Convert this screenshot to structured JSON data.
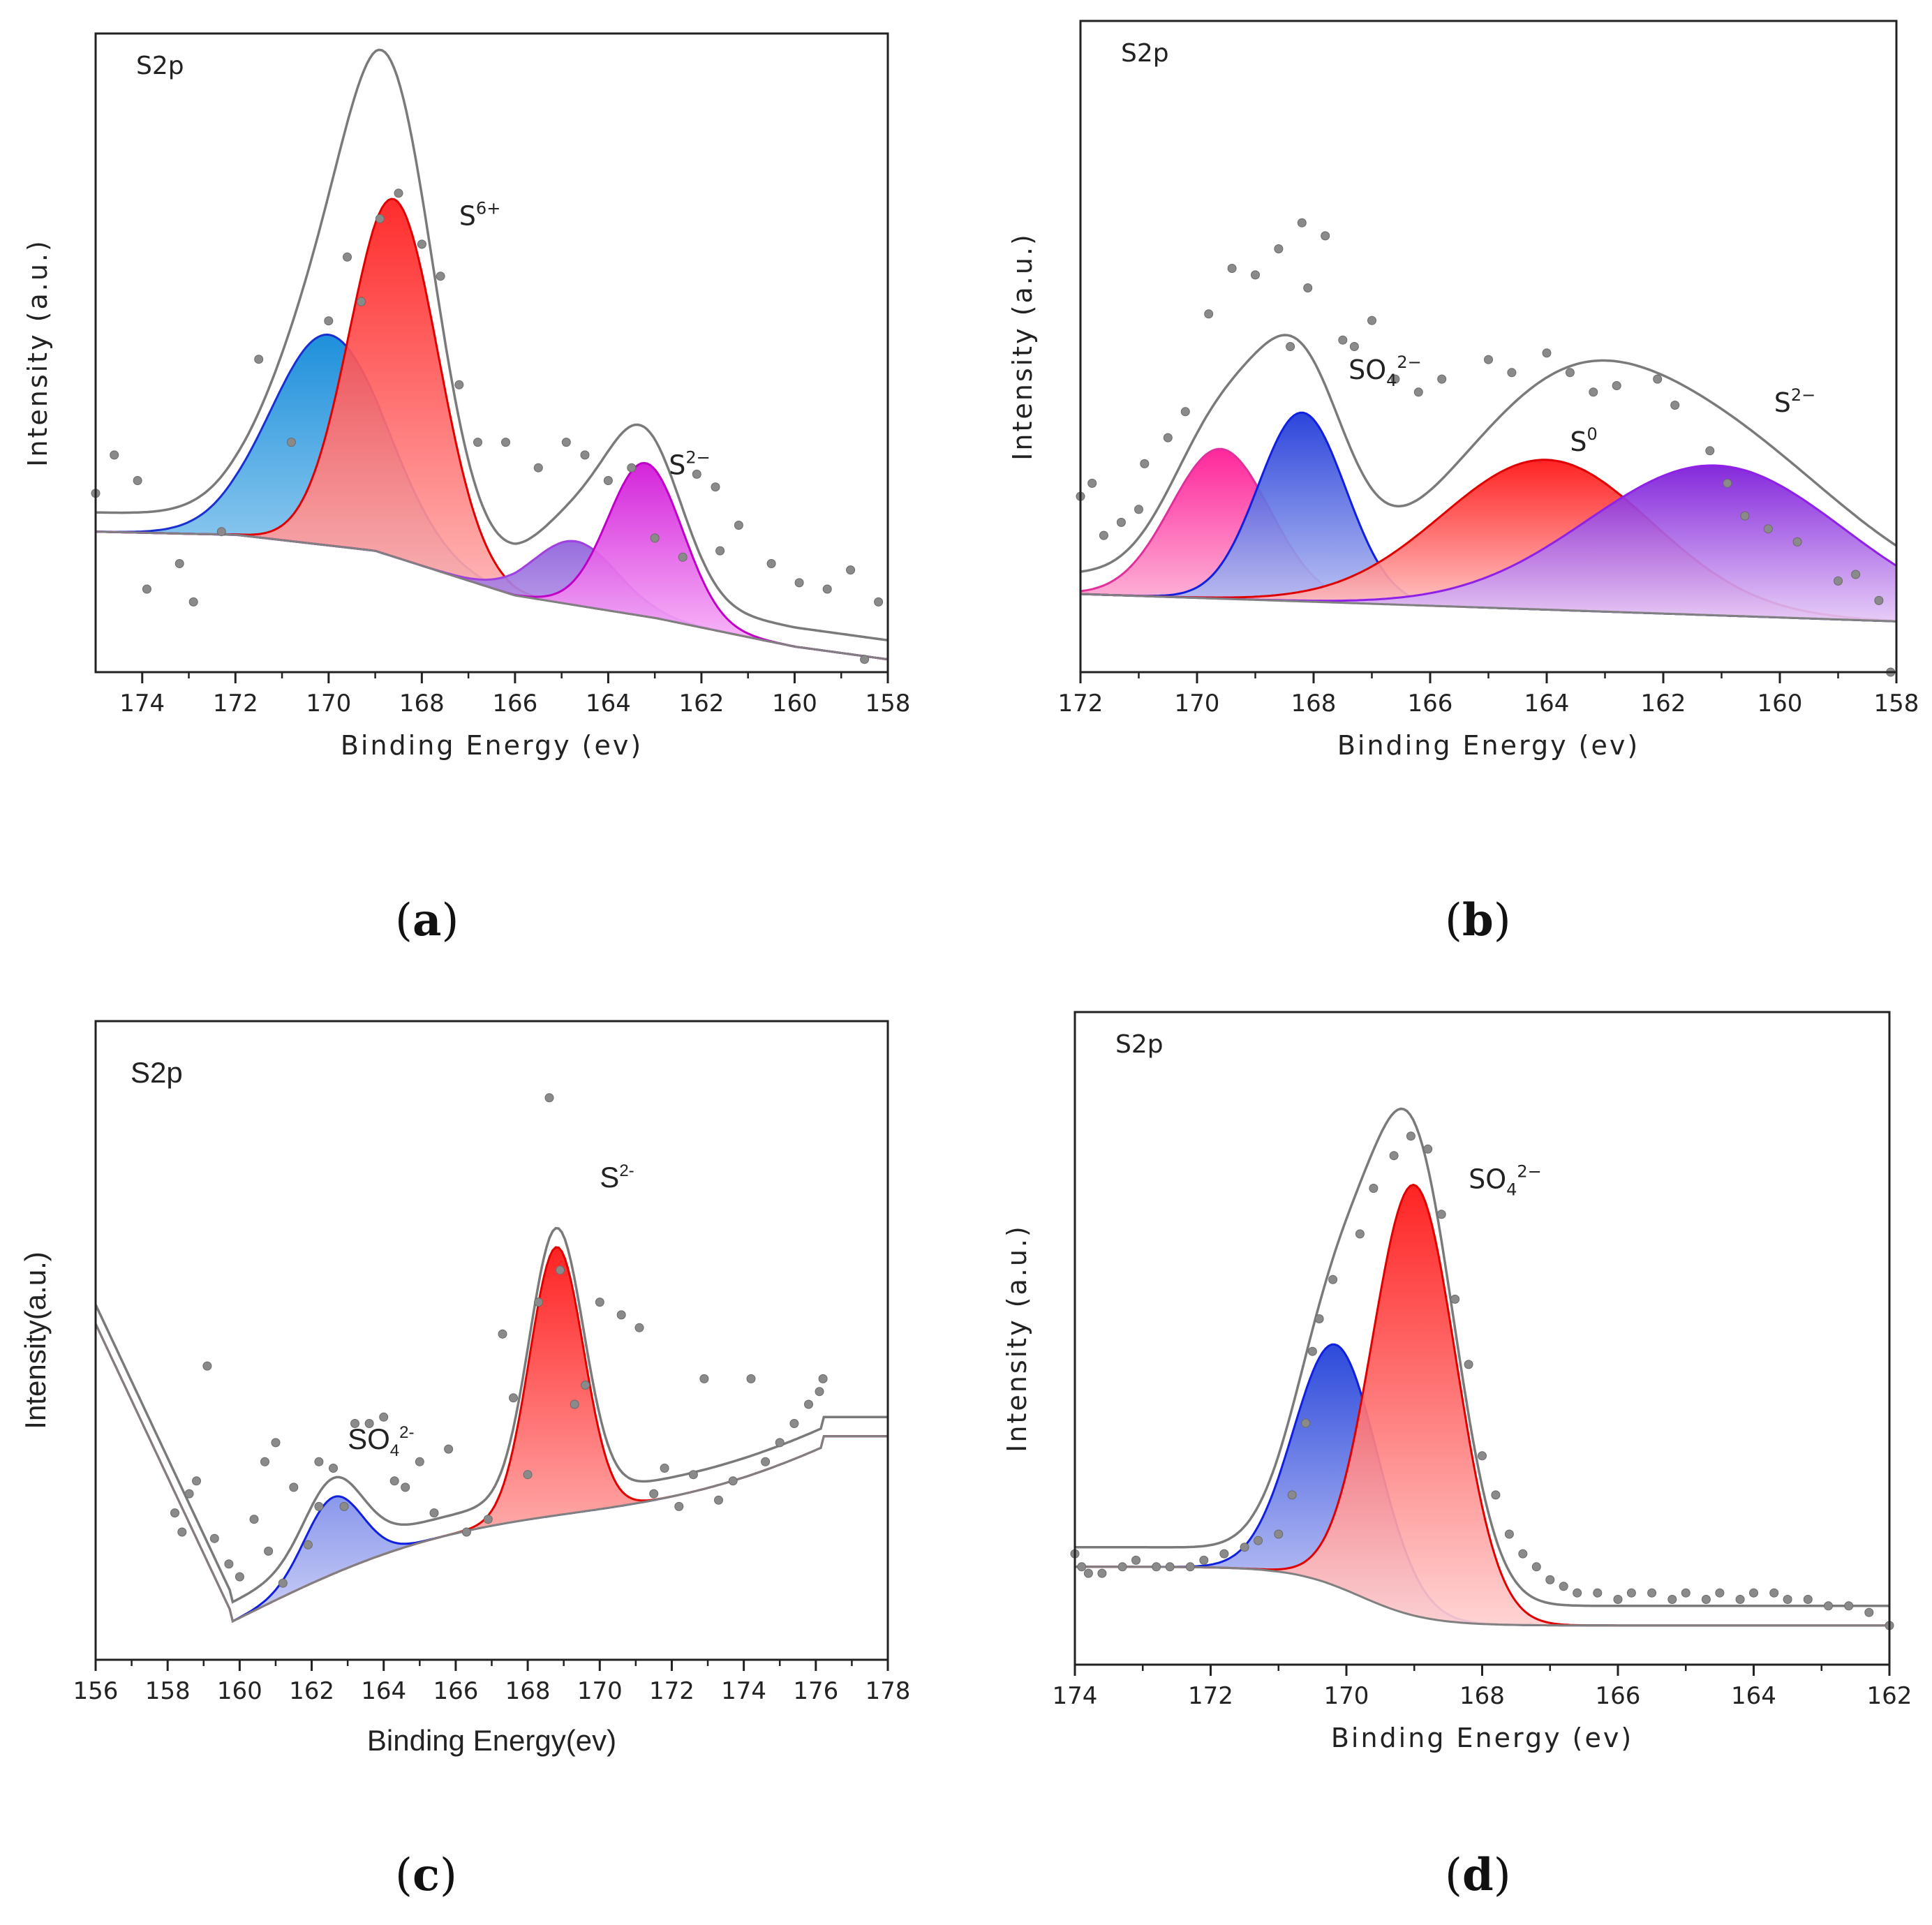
{
  "figure": {
    "panel_labels": [
      "(a)",
      "(b)",
      "(c)",
      "(d)"
    ]
  },
  "chart_data": [
    {
      "id": "a",
      "type": "area",
      "title": "S2p",
      "xlabel": "Binding Energy (ev)",
      "ylabel": "Intensity (a.u.)",
      "xlim": [
        175,
        158
      ],
      "ylim": [
        0,
        1
      ],
      "xticks": [
        174,
        172,
        170,
        168,
        166,
        164,
        162,
        160,
        158
      ],
      "grid": false,
      "annotations": [
        {
          "base": "S",
          "sup": "6+",
          "x": 167.2,
          "y": 0.7
        },
        {
          "base": "S",
          "sup": "2−",
          "x": 162.7,
          "y": 0.31
        }
      ],
      "background_slope": [
        [
          175,
          0.22
        ],
        [
          172,
          0.215
        ],
        [
          169,
          0.19
        ],
        [
          166,
          0.12
        ],
        [
          163,
          0.085
        ],
        [
          160,
          0.04
        ],
        [
          158,
          0.02
        ]
      ],
      "peaks": [
        {
          "center": 170.0,
          "height": 0.33,
          "width": 1.25,
          "color_top": "#0a86d8",
          "color_bottom": "#bfe3f7",
          "stroke": "#1a2fd0"
        },
        {
          "center": 168.6,
          "height": 0.56,
          "width": 0.95,
          "color_top": "#ff1a1a",
          "color_bottom": "#ffc8c8",
          "stroke": "#e10000"
        },
        {
          "center": 164.7,
          "height": 0.1,
          "width": 0.9,
          "color_top": "#8a5ad8",
          "color_bottom": "#cdb6f2",
          "stroke": "#a040e0"
        },
        {
          "center": 163.2,
          "height": 0.24,
          "width": 0.8,
          "color_top": "#d012d8",
          "color_bottom": "#fbc0fb",
          "stroke": "#c000c8"
        }
      ],
      "points": [
        [
          175.0,
          0.28
        ],
        [
          174.6,
          0.34
        ],
        [
          174.1,
          0.3
        ],
        [
          173.9,
          0.13
        ],
        [
          173.2,
          0.17
        ],
        [
          172.9,
          0.11
        ],
        [
          172.3,
          0.22
        ],
        [
          171.5,
          0.49
        ],
        [
          170.8,
          0.36
        ],
        [
          170.0,
          0.55
        ],
        [
          169.6,
          0.65
        ],
        [
          169.3,
          0.58
        ],
        [
          168.9,
          0.71
        ],
        [
          168.5,
          0.75
        ],
        [
          168.0,
          0.67
        ],
        [
          167.6,
          0.62
        ],
        [
          167.2,
          0.45
        ],
        [
          166.8,
          0.36
        ],
        [
          166.2,
          0.36
        ],
        [
          165.5,
          0.32
        ],
        [
          164.9,
          0.36
        ],
        [
          164.5,
          0.34
        ],
        [
          164.0,
          0.3
        ],
        [
          163.5,
          0.32
        ],
        [
          163.0,
          0.21
        ],
        [
          162.4,
          0.18
        ],
        [
          162.1,
          0.31
        ],
        [
          161.7,
          0.29
        ],
        [
          161.2,
          0.23
        ],
        [
          160.5,
          0.17
        ],
        [
          159.9,
          0.14
        ],
        [
          159.3,
          0.13
        ],
        [
          158.8,
          0.16
        ],
        [
          158.2,
          0.11
        ],
        [
          161.6,
          0.19
        ],
        [
          158.5,
          0.02
        ]
      ]
    },
    {
      "id": "b",
      "type": "area",
      "title": "S2p",
      "xlabel": "Binding Energy (ev)",
      "ylabel": "Intensity (a.u.)",
      "xlim": [
        172,
        158
      ],
      "ylim": [
        0,
        1
      ],
      "xticks": [
        172,
        170,
        168,
        166,
        164,
        162,
        160,
        158
      ],
      "grid": false,
      "annotations": [
        {
          "base": "SO",
          "sub": "4",
          "sup": "2−",
          "x": 167.4,
          "y": 0.45
        },
        {
          "base": "S",
          "sup": "0",
          "x": 163.6,
          "y": 0.34
        },
        {
          "base": "S",
          "sup": "2−",
          "x": 160.1,
          "y": 0.4
        }
      ],
      "peaks": [
        {
          "center": 169.6,
          "height": 0.23,
          "width": 0.85,
          "color_top": "#ff1493",
          "color_bottom": "#fcc0dc",
          "stroke": "#e0309a"
        },
        {
          "center": 168.2,
          "height": 0.29,
          "width": 0.75,
          "color_top": "#1a35d8",
          "color_bottom": "#c4caf4",
          "stroke": "#1020e0"
        },
        {
          "center": 164.0,
          "height": 0.23,
          "width": 1.8,
          "color_top": "#ff1010",
          "color_bottom": "#ffd0d0",
          "stroke": "#e00000"
        },
        {
          "center": 161.1,
          "height": 0.23,
          "width": 2.2,
          "color_top": "#7a16d8",
          "color_bottom": "#e4c8f7",
          "stroke": "#9020e8"
        }
      ],
      "points": [
        [
          172.0,
          0.27
        ],
        [
          171.8,
          0.29
        ],
        [
          171.6,
          0.21
        ],
        [
          171.3,
          0.23
        ],
        [
          171.0,
          0.25
        ],
        [
          170.9,
          0.32
        ],
        [
          170.5,
          0.36
        ],
        [
          170.2,
          0.4
        ],
        [
          169.8,
          0.55
        ],
        [
          169.4,
          0.62
        ],
        [
          169.0,
          0.61
        ],
        [
          168.6,
          0.65
        ],
        [
          168.2,
          0.69
        ],
        [
          167.8,
          0.67
        ],
        [
          167.5,
          0.51
        ],
        [
          167.0,
          0.54
        ],
        [
          166.6,
          0.45
        ],
        [
          166.2,
          0.43
        ],
        [
          165.8,
          0.45
        ],
        [
          165.0,
          0.48
        ],
        [
          164.6,
          0.46
        ],
        [
          164.0,
          0.49
        ],
        [
          163.6,
          0.46
        ],
        [
          163.2,
          0.43
        ],
        [
          162.8,
          0.44
        ],
        [
          162.1,
          0.45
        ],
        [
          161.8,
          0.41
        ],
        [
          161.2,
          0.34
        ],
        [
          160.9,
          0.29
        ],
        [
          160.6,
          0.24
        ],
        [
          160.2,
          0.22
        ],
        [
          159.7,
          0.2
        ],
        [
          159.0,
          0.14
        ],
        [
          158.7,
          0.15
        ],
        [
          158.3,
          0.11
        ],
        [
          158.1,
          0.0
        ],
        [
          168.4,
          0.5
        ],
        [
          167.3,
          0.5
        ],
        [
          168.1,
          0.59
        ]
      ]
    },
    {
      "id": "c",
      "type": "area",
      "title": "S2p",
      "xlabel": "Binding Energy(ev)",
      "ylabel": "Intensity(a.u.)",
      "xlim": [
        156,
        178
      ],
      "ylim": [
        0,
        1
      ],
      "xticks": [
        156,
        158,
        160,
        162,
        164,
        166,
        168,
        170,
        172,
        174,
        176,
        178
      ],
      "grid": false,
      "annotations": [
        {
          "base": "S",
          "sup": "2-",
          "x": 170.0,
          "y": 0.74
        },
        {
          "base": "SO",
          "sub": "4",
          "sup": "2-",
          "x": 163.0,
          "y": 0.33
        }
      ],
      "peaks": [
        {
          "center": 162.6,
          "height": 0.12,
          "width": 0.8,
          "color_top": "#1a3ad8",
          "color_bottom": "#c8ccf6",
          "stroke": "#1020e0"
        },
        {
          "center": 168.8,
          "height": 0.42,
          "width": 0.75,
          "color_top": "#ff1010",
          "color_bottom": "#ffd0d0",
          "stroke": "#e00000"
        }
      ],
      "points": [
        [
          158.2,
          0.23
        ],
        [
          158.4,
          0.2
        ],
        [
          158.6,
          0.26
        ],
        [
          158.8,
          0.28
        ],
        [
          159.1,
          0.46
        ],
        [
          159.3,
          0.19
        ],
        [
          159.7,
          0.15
        ],
        [
          160.0,
          0.13
        ],
        [
          160.4,
          0.22
        ],
        [
          160.7,
          0.31
        ],
        [
          160.8,
          0.17
        ],
        [
          161.2,
          0.12
        ],
        [
          161.5,
          0.27
        ],
        [
          161.9,
          0.18
        ],
        [
          162.2,
          0.24
        ],
        [
          162.6,
          0.3
        ],
        [
          162.9,
          0.24
        ],
        [
          163.2,
          0.37
        ],
        [
          163.6,
          0.37
        ],
        [
          164.0,
          0.38
        ],
        [
          164.3,
          0.28
        ],
        [
          164.6,
          0.27
        ],
        [
          165.0,
          0.31
        ],
        [
          165.4,
          0.23
        ],
        [
          165.8,
          0.33
        ],
        [
          166.3,
          0.2
        ],
        [
          166.9,
          0.22
        ],
        [
          167.3,
          0.51
        ],
        [
          167.6,
          0.41
        ],
        [
          168.0,
          0.29
        ],
        [
          168.3,
          0.56
        ],
        [
          168.6,
          0.88
        ],
        [
          168.9,
          0.61
        ],
        [
          169.3,
          0.4
        ],
        [
          169.6,
          0.43
        ],
        [
          170.0,
          0.56
        ],
        [
          170.6,
          0.54
        ],
        [
          171.1,
          0.52
        ],
        [
          171.5,
          0.26
        ],
        [
          171.8,
          0.3
        ],
        [
          172.2,
          0.24
        ],
        [
          172.6,
          0.29
        ],
        [
          172.9,
          0.44
        ],
        [
          173.3,
          0.25
        ],
        [
          173.7,
          0.28
        ],
        [
          174.2,
          0.44
        ],
        [
          174.6,
          0.31
        ],
        [
          175.0,
          0.34
        ],
        [
          175.4,
          0.37
        ],
        [
          175.8,
          0.4
        ],
        [
          176.1,
          0.42
        ],
        [
          176.2,
          0.44
        ],
        [
          161.0,
          0.34
        ],
        [
          162.2,
          0.31
        ]
      ]
    },
    {
      "id": "d",
      "type": "area",
      "title": "S2p",
      "xlabel": "Binding Energy (ev)",
      "ylabel": "Intensity (a.u.)",
      "xlim": [
        174,
        162
      ],
      "ylim": [
        0,
        1
      ],
      "xticks": [
        174,
        172,
        170,
        168,
        166,
        164,
        162
      ],
      "grid": false,
      "annotations": [
        {
          "base": "SO",
          "sub": "4",
          "sup": "2−",
          "x": 168.2,
          "y": 0.73
        }
      ],
      "peaks": [
        {
          "center": 170.15,
          "height": 0.37,
          "width": 0.62,
          "color_top": "#1a3ad8",
          "color_bottom": "#c8ccf6",
          "stroke": "#1020e0"
        },
        {
          "center": 169.0,
          "height": 0.66,
          "width": 0.62,
          "color_top": "#ff1010",
          "color_bottom": "#ffd0d0",
          "stroke": "#e00000"
        }
      ],
      "points": [
        [
          174.0,
          0.17
        ],
        [
          173.9,
          0.15
        ],
        [
          173.8,
          0.14
        ],
        [
          173.6,
          0.14
        ],
        [
          173.3,
          0.15
        ],
        [
          173.1,
          0.16
        ],
        [
          172.8,
          0.15
        ],
        [
          172.6,
          0.15
        ],
        [
          172.3,
          0.15
        ],
        [
          172.1,
          0.16
        ],
        [
          171.8,
          0.17
        ],
        [
          171.5,
          0.18
        ],
        [
          171.3,
          0.19
        ],
        [
          171.0,
          0.2
        ],
        [
          170.8,
          0.26
        ],
        [
          170.6,
          0.37
        ],
        [
          170.5,
          0.48
        ],
        [
          170.4,
          0.53
        ],
        [
          170.2,
          0.59
        ],
        [
          169.8,
          0.66
        ],
        [
          169.6,
          0.73
        ],
        [
          169.3,
          0.78
        ],
        [
          169.05,
          0.81
        ],
        [
          168.8,
          0.79
        ],
        [
          168.6,
          0.69
        ],
        [
          168.4,
          0.56
        ],
        [
          168.2,
          0.46
        ],
        [
          168.0,
          0.32
        ],
        [
          167.8,
          0.26
        ],
        [
          167.6,
          0.2
        ],
        [
          167.4,
          0.17
        ],
        [
          167.2,
          0.15
        ],
        [
          167.0,
          0.13
        ],
        [
          166.8,
          0.12
        ],
        [
          166.6,
          0.11
        ],
        [
          166.3,
          0.11
        ],
        [
          166.0,
          0.1
        ],
        [
          165.8,
          0.11
        ],
        [
          165.5,
          0.11
        ],
        [
          165.2,
          0.1
        ],
        [
          165.0,
          0.11
        ],
        [
          164.7,
          0.1
        ],
        [
          164.5,
          0.11
        ],
        [
          164.2,
          0.1
        ],
        [
          164.0,
          0.11
        ],
        [
          163.7,
          0.11
        ],
        [
          163.5,
          0.1
        ],
        [
          163.2,
          0.1
        ],
        [
          162.9,
          0.09
        ],
        [
          162.6,
          0.09
        ],
        [
          162.3,
          0.08
        ],
        [
          162.0,
          0.06
        ]
      ]
    }
  ]
}
